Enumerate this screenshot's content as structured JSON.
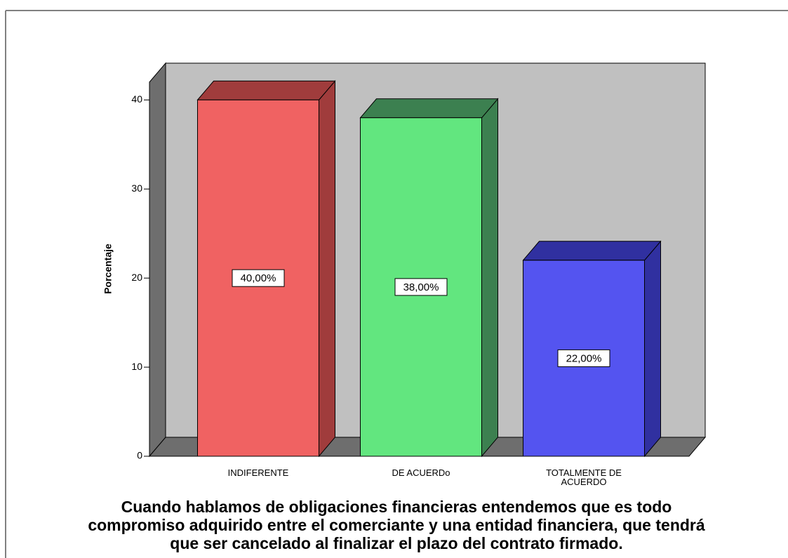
{
  "chart_data": {
    "type": "bar3d",
    "ylabel": "Porcentaje",
    "xlabel": [
      "Cuando hablamos de obligaciones financieras entendemos que es todo",
      "compromiso adquirido entre el comerciante y una entidad financiera, que tendrá",
      "que ser cancelado al finalizar el plazo del contrato firmado."
    ],
    "categories": [
      "INDIFERENTE",
      "DE ACUERDo",
      "TOTALMENTE DE ACUERDO"
    ],
    "values": [
      40,
      38,
      22
    ],
    "value_labels": [
      "40,00%",
      "38,00%",
      "22,00%"
    ],
    "colors": [
      "#f06262",
      "#62e67f",
      "#5454f0"
    ],
    "side_colors": [
      "#a03c3c",
      "#3c8050",
      "#3030a0"
    ],
    "ylim": [
      0,
      42
    ],
    "yticks": [
      0,
      10,
      20,
      30,
      40
    ]
  }
}
